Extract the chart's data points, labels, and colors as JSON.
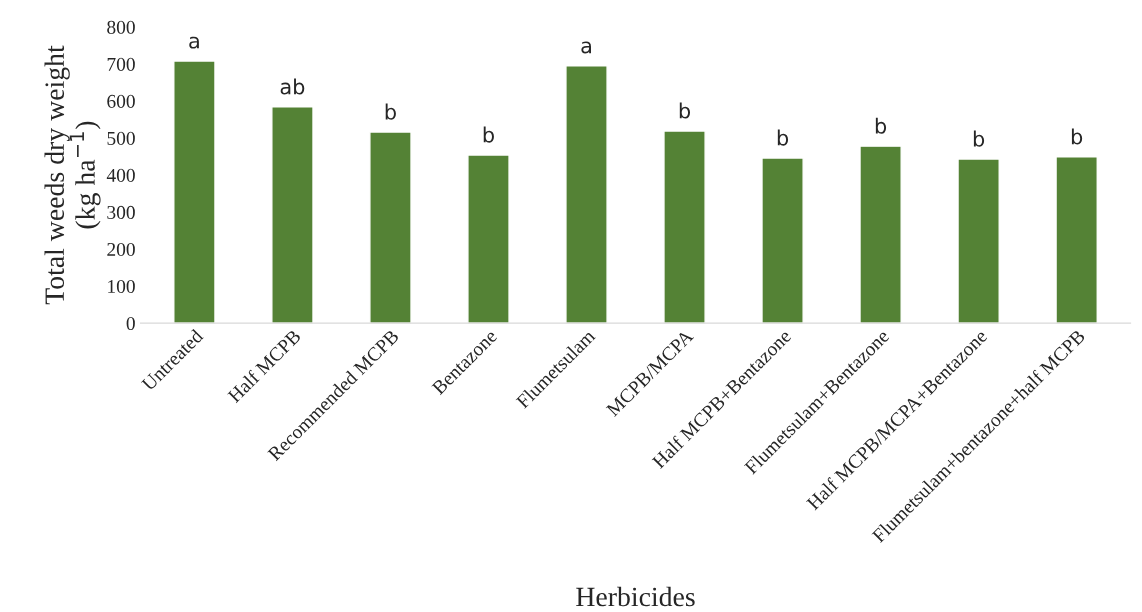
{
  "chart_data": {
    "type": "bar",
    "categories": [
      "Untreated",
      "Half MCPB",
      "Recommended MCPB",
      "Bentazone",
      "Flumetsulam",
      "MCPB/MCPA",
      "Half MCPB+Bentazone",
      "Flumetsulam+Bentazone",
      "Half MCPB/MCPA+Bentazone",
      "Flumetsulam+bentazone+half MCPB"
    ],
    "values": [
      708,
      584,
      516,
      454,
      695,
      519,
      446,
      478,
      443,
      449
    ],
    "color": "#548235",
    "xlabel": "Herbicides",
    "ylabel": "Total weeds dry weight\n(kg ha$^{−1}$)",
    "ylim": [
      0,
      800
    ],
    "yticks": [
      0,
      100,
      200,
      300,
      400,
      500,
      600,
      700,
      800
    ],
    "grid": false,
    "annotations": [
      {
        "text": "a",
        "x": "Untreated",
        "y": 708
      },
      {
        "text": "ab",
        "x": "Half MCPB",
        "y": 584
      },
      {
        "text": "b",
        "x": "Recommended MCPB",
        "y": 516
      },
      {
        "text": "b",
        "x": "Bentazone",
        "y": 454
      },
      {
        "text": "a",
        "x": "Flumetsulam",
        "y": 695
      },
      {
        "text": "b",
        "x": "MCPB/MCPA",
        "y": 519
      },
      {
        "text": "b",
        "x": "Half MCPB+Bentazone",
        "y": 446
      },
      {
        "text": "b",
        "x": "Flumetsulam+Bentazone",
        "y": 478
      },
      {
        "text": "b",
        "x": "Half MCPB/MCPA+Bentazone",
        "y": 443
      },
      {
        "text": "b",
        "x": "Flumetsulam+bentazone+half MCPB",
        "y": 449
      }
    ]
  }
}
